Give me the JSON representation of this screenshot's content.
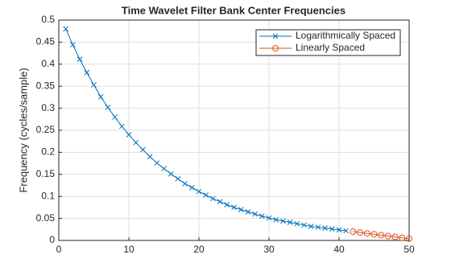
{
  "chart_data": {
    "type": "line",
    "title": "Time Wavelet Filter Bank Center Frequencies",
    "y_label": "Frequency (cycles/sample)",
    "series": [
      {
        "name": "Logarithmically Spaced",
        "color": "#0072bd",
        "marker": "x",
        "x": [
          1,
          2,
          3,
          4,
          5,
          6,
          7,
          8,
          9,
          10,
          11,
          12,
          13,
          14,
          15,
          16,
          17,
          18,
          19,
          20,
          21,
          22,
          23,
          24,
          25,
          26,
          27,
          28,
          29,
          30,
          31,
          32,
          33,
          34,
          35,
          36,
          37,
          38,
          39,
          40,
          41
        ],
        "values": [
          0.48,
          0.444,
          0.411,
          0.381,
          0.353,
          0.326,
          0.302,
          0.28,
          0.259,
          0.24,
          0.222,
          0.206,
          0.19,
          0.176,
          0.163,
          0.151,
          0.14,
          0.129,
          0.12,
          0.111,
          0.103,
          0.095,
          0.088,
          0.081,
          0.075,
          0.07,
          0.065,
          0.06,
          0.055,
          0.051,
          0.047,
          0.044,
          0.041,
          0.038,
          0.035,
          0.032,
          0.03,
          0.028,
          0.026,
          0.024,
          0.022
        ]
      },
      {
        "name": "Linearly Spaced",
        "color": "#d95319",
        "marker": "o",
        "x": [
          42,
          43,
          44,
          45,
          46,
          47,
          48,
          49,
          50
        ],
        "values": [
          0.02,
          0.018,
          0.016,
          0.014,
          0.012,
          0.01,
          0.008,
          0.006,
          0.004
        ]
      }
    ],
    "xlim": [
      0,
      50
    ],
    "xticks": [
      0,
      10,
      20,
      30,
      40,
      50
    ],
    "ylim": [
      0,
      0.5
    ],
    "yticks": [
      0,
      0.05,
      0.1,
      0.15,
      0.2,
      0.25,
      0.3,
      0.35,
      0.4,
      0.45,
      0.5
    ],
    "grid": true,
    "legend": "top-right"
  }
}
